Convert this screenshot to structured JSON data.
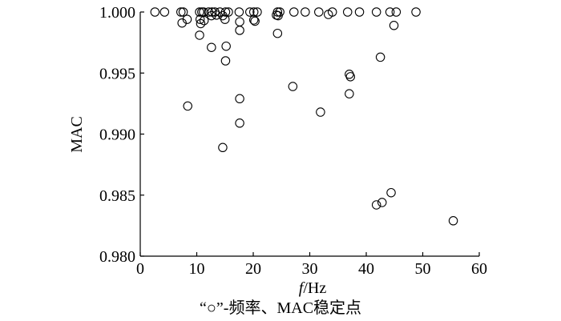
{
  "chart_data": {
    "type": "scatter",
    "title": "",
    "xlabel": "f",
    "xlabel_unit": "/Hz",
    "ylabel": "MAC",
    "xlim": [
      0,
      60
    ],
    "ylim": [
      0.98,
      1.0
    ],
    "x_ticks": [
      "0",
      "10",
      "20",
      "30",
      "40",
      "50",
      "60"
    ],
    "y_ticks": [
      "0.980",
      "0.985",
      "0.990",
      "0.995",
      "1.000"
    ],
    "x_tick_values": [
      0,
      10,
      20,
      30,
      40,
      50,
      60
    ],
    "y_tick_values": [
      0.98,
      0.985,
      0.99,
      0.995,
      1.0
    ],
    "grid": false,
    "marker": "open-circle",
    "caption": "“○”-频率、MAC稳定点",
    "points": [
      [
        2.6,
        1.0
      ],
      [
        4.3,
        1.0
      ],
      [
        7.2,
        1.0
      ],
      [
        7.6,
        1.0
      ],
      [
        10.5,
        1.0
      ],
      [
        10.9,
        1.0
      ],
      [
        11.2,
        1.0
      ],
      [
        12.1,
        1.0
      ],
      [
        12.7,
        1.0
      ],
      [
        13.2,
        1.0
      ],
      [
        14.1,
        1.0
      ],
      [
        15.1,
        1.0
      ],
      [
        15.6,
        1.0
      ],
      [
        17.5,
        1.0
      ],
      [
        19.4,
        1.0
      ],
      [
        20.1,
        1.0
      ],
      [
        20.7,
        1.0
      ],
      [
        24.3,
        1.0
      ],
      [
        24.7,
        1.0
      ],
      [
        27.2,
        1.0
      ],
      [
        29.2,
        1.0
      ],
      [
        31.6,
        1.0
      ],
      [
        34.0,
        1.0
      ],
      [
        36.7,
        1.0
      ],
      [
        38.8,
        1.0
      ],
      [
        41.8,
        1.0
      ],
      [
        44.2,
        1.0
      ],
      [
        45.3,
        1.0
      ],
      [
        48.8,
        1.0
      ],
      [
        7.4,
        0.9991
      ],
      [
        8.3,
        0.9994
      ],
      [
        10.6,
        0.9994
      ],
      [
        10.7,
        0.99905
      ],
      [
        11.3,
        0.9993
      ],
      [
        12.6,
        0.9997
      ],
      [
        13.5,
        0.99975
      ],
      [
        14.6,
        0.9997
      ],
      [
        15.0,
        0.9994
      ],
      [
        17.6,
        0.9992
      ],
      [
        20.1,
        0.99935
      ],
      [
        20.3,
        0.99925
      ],
      [
        24.1,
        0.99975
      ],
      [
        24.4,
        0.9997
      ],
      [
        33.3,
        0.9998
      ],
      [
        44.9,
        0.9989
      ],
      [
        10.5,
        0.9981
      ],
      [
        12.6,
        0.9971
      ],
      [
        15.2,
        0.9972
      ],
      [
        17.6,
        0.9985
      ],
      [
        24.3,
        0.99825
      ],
      [
        15.1,
        0.996
      ],
      [
        42.5,
        0.9963
      ],
      [
        27.0,
        0.9939
      ],
      [
        37.0,
        0.9949
      ],
      [
        37.2,
        0.9947
      ],
      [
        37.0,
        0.9933
      ],
      [
        8.4,
        0.9923
      ],
      [
        17.6,
        0.9929
      ],
      [
        31.9,
        0.9918
      ],
      [
        17.6,
        0.9909
      ],
      [
        14.6,
        0.9889
      ],
      [
        44.4,
        0.9852
      ],
      [
        42.8,
        0.9844
      ],
      [
        41.8,
        0.9842
      ],
      [
        55.4,
        0.9829
      ]
    ]
  }
}
